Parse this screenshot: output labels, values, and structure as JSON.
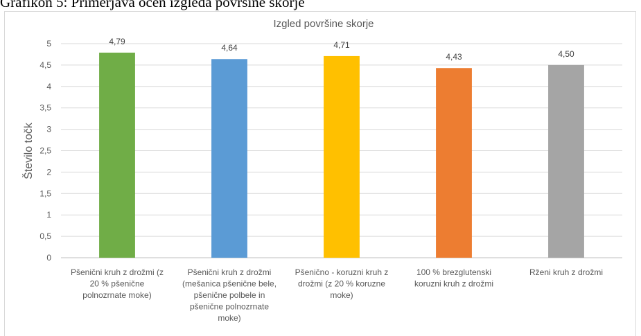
{
  "caption": "Grafikon 5: Primerjava ocen izgleda površine skorje",
  "chart_data": {
    "type": "bar",
    "title": "Izgled površine skorje",
    "ylabel": "Število točk",
    "xlabel": "",
    "ylim": [
      0,
      5
    ],
    "yticks": [
      "0",
      "0,5",
      "1",
      "1,5",
      "2",
      "2,5",
      "3",
      "3,5",
      "4",
      "4,5",
      "5"
    ],
    "grid": true,
    "legend": "none",
    "categories": [
      [
        "Pšenični kruh z drožmi (z",
        "20 % pšenične",
        "polnozrnate moke)"
      ],
      [
        "Pšenični kruh z drožmi",
        "(mešanica pšenične bele,",
        "pšenične polbele in",
        "pšenične polnozrnate",
        "moke)"
      ],
      [
        "Pšenično - koruzni kruh z",
        "drožmi (z 20 % koruzne",
        "moke)"
      ],
      [
        "100 % brezglutenski",
        "koruzni kruh z drožmi"
      ],
      [
        "Rženi kruh z drožmi"
      ]
    ],
    "values": [
      4.79,
      4.64,
      4.71,
      4.43,
      4.5
    ],
    "data_labels": [
      "4,79",
      "4,64",
      "4,71",
      "4,43",
      "4,50"
    ],
    "colors": [
      "#70ad47",
      "#5b9bd5",
      "#ffc000",
      "#ed7d31",
      "#a5a5a5"
    ]
  }
}
